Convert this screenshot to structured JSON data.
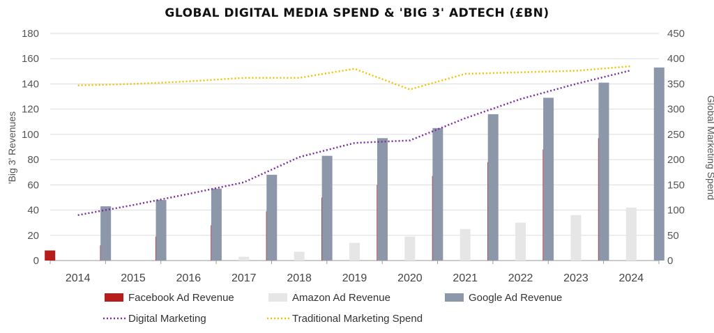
{
  "chart_data": {
    "type": "bar",
    "title": "GLOBAL DIGITAL MEDIA SPEND & 'BIG 3' ADTECH (£BN)",
    "categories": [
      "2014",
      "2015",
      "2016",
      "2017",
      "2018",
      "2019",
      "2020",
      "2021",
      "2022",
      "2023",
      "2024"
    ],
    "ylabel": "'Big 3' Revenues",
    "y2label": "Global Marketing Spend",
    "ylim": [
      0,
      180
    ],
    "y2lim": [
      0,
      450
    ],
    "yticks": [
      0,
      20,
      40,
      60,
      80,
      100,
      120,
      140,
      160,
      180
    ],
    "y2ticks": [
      0,
      50,
      100,
      150,
      200,
      250,
      300,
      350,
      400,
      450
    ],
    "grid": true,
    "legend_position": "bottom",
    "series": [
      {
        "name": "Facebook Ad Revenue",
        "type": "bar",
        "axis": "left",
        "color": "#b71c1c",
        "values": [
          8,
          12,
          19,
          28,
          39,
          50,
          60,
          67,
          78,
          88,
          97
        ]
      },
      {
        "name": "Amazon Ad Revenue",
        "type": "bar",
        "axis": "left",
        "color": "#e6e6e6",
        "values": [
          0,
          0,
          0,
          3,
          7,
          14,
          19,
          25,
          30,
          36,
          42
        ]
      },
      {
        "name": "Google Ad Revenue",
        "type": "bar",
        "axis": "left",
        "color": "#8c97aa",
        "values": [
          43,
          48,
          57,
          68,
          83,
          97,
          105,
          116,
          129,
          141,
          153
        ]
      },
      {
        "name": "Digital Marketing",
        "type": "line",
        "style": "dotted",
        "axis": "right",
        "color": "#7b2d9e",
        "values": [
          90,
          110,
          132,
          155,
          205,
          233,
          238,
          282,
          320,
          350,
          377
        ]
      },
      {
        "name": "Traditional Marketing Spend",
        "type": "line",
        "style": "dotted",
        "axis": "right",
        "color": "#f2c200",
        "values": [
          347,
          350,
          355,
          362,
          362,
          380,
          339,
          370,
          373,
          376,
          385
        ]
      }
    ]
  }
}
